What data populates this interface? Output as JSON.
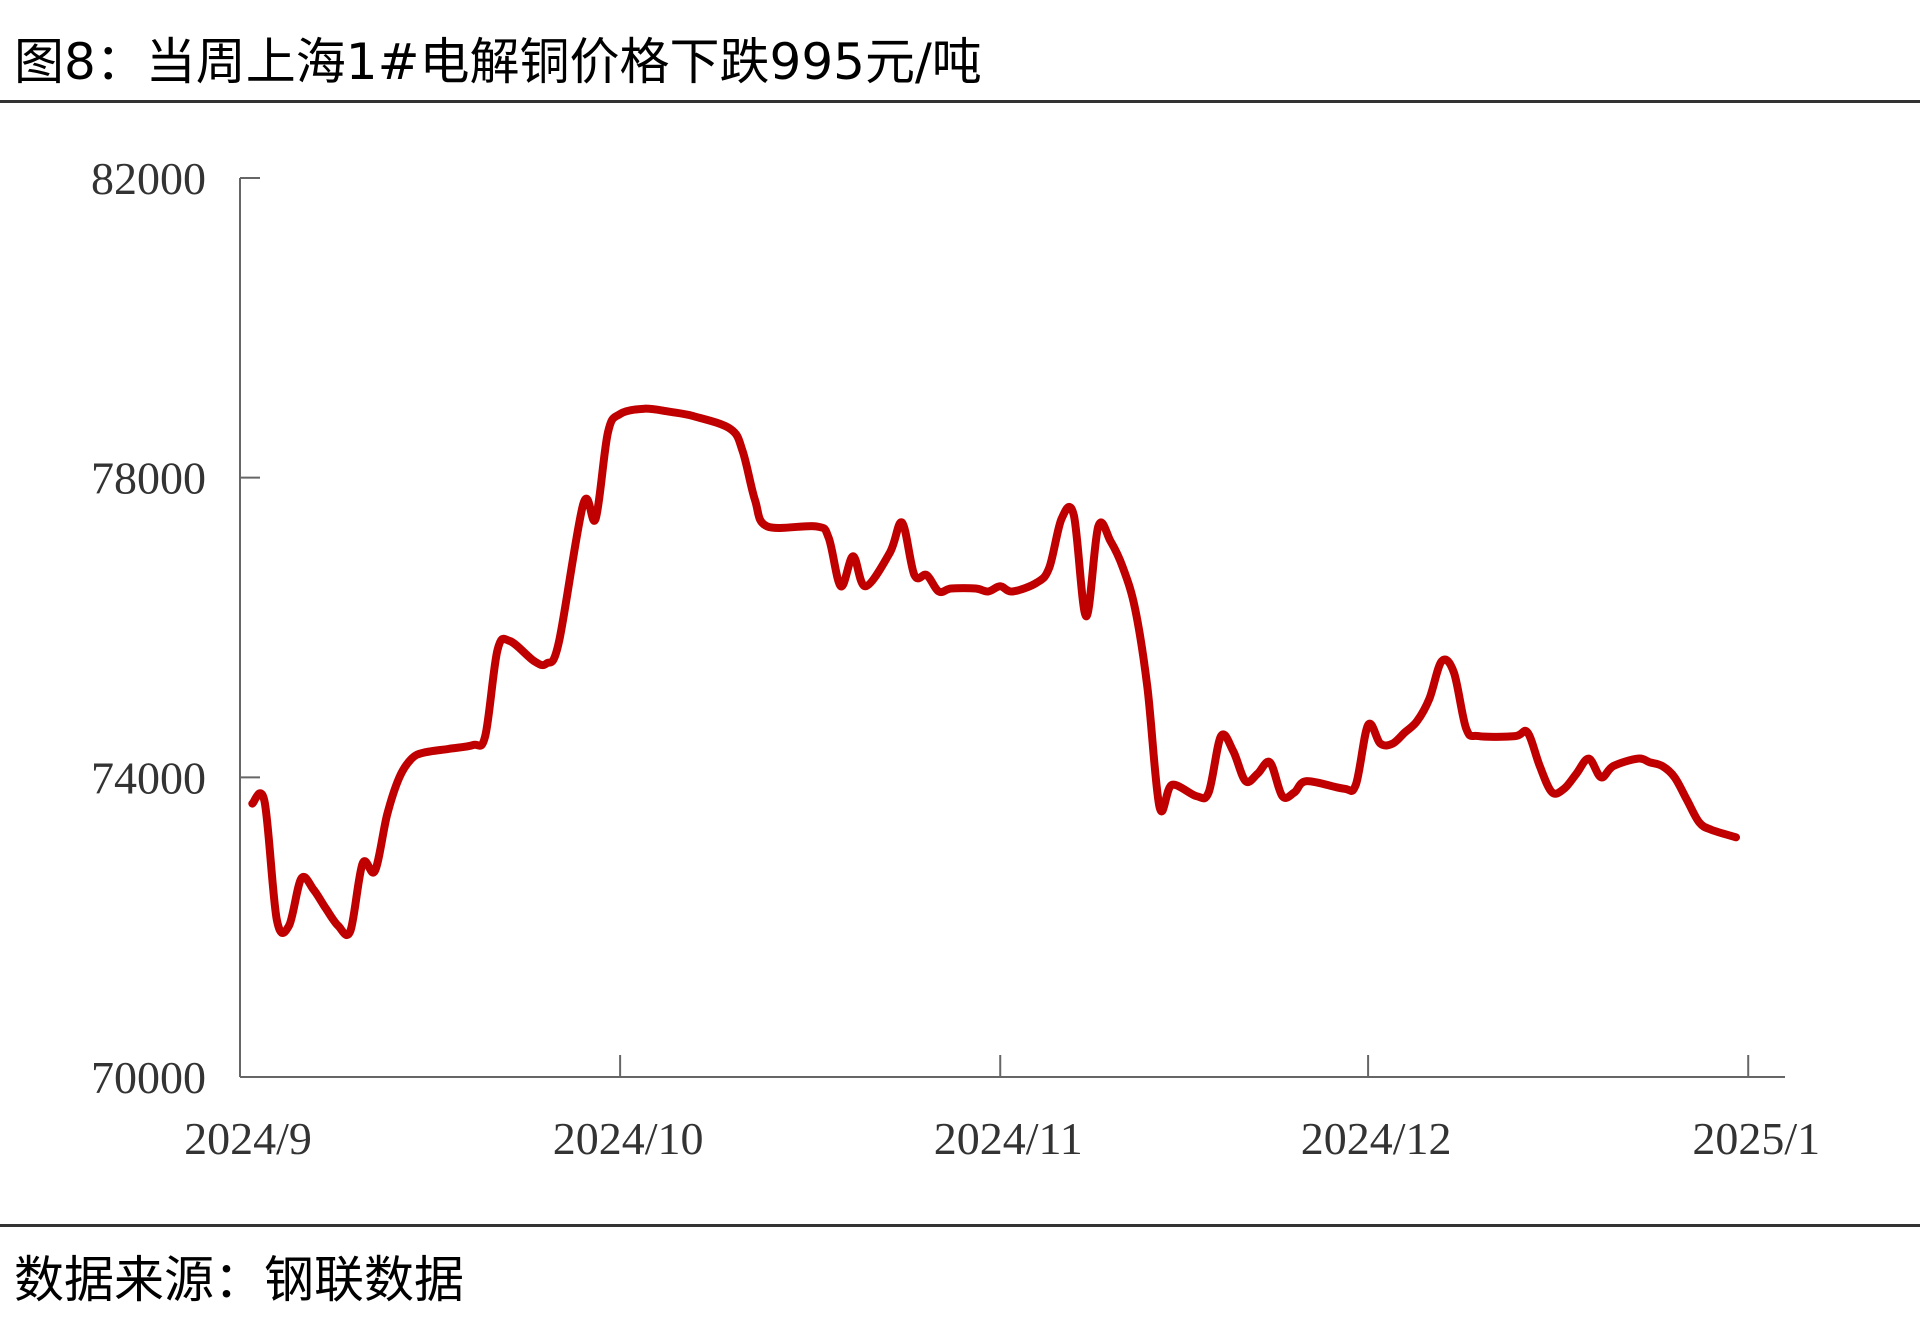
{
  "header": {
    "title": "图8：当周上海1#电解铜价格下跌995元/吨"
  },
  "footer": {
    "source": "数据来源：钢联数据"
  },
  "chart_data": {
    "type": "line",
    "title": "图8：当周上海1#电解铜价格下跌995元/吨",
    "xlabel": "",
    "ylabel": "",
    "ylim": [
      70000,
      82000
    ],
    "yticks": [
      70000,
      74000,
      78000,
      82000
    ],
    "xticks": [
      "2024/9",
      "2024/10",
      "2024/11",
      "2024/12",
      "2025/1"
    ],
    "xlim": [
      "2024-09-01",
      "2025-01-01"
    ],
    "grid": false,
    "legend": "none",
    "line_color": "#C00000",
    "series": [
      {
        "points": [
          [
            "2024-09-01",
            73650
          ],
          [
            "2024-09-02",
            73680
          ],
          [
            "2024-09-03",
            72100
          ],
          [
            "2024-09-04",
            72020
          ],
          [
            "2024-09-05",
            72650
          ],
          [
            "2024-09-06",
            72500
          ],
          [
            "2024-09-07",
            72250
          ],
          [
            "2024-09-08",
            72020
          ],
          [
            "2024-09-09",
            71950
          ],
          [
            "2024-09-10",
            72850
          ],
          [
            "2024-09-11",
            72750
          ],
          [
            "2024-09-12",
            73500
          ],
          [
            "2024-09-13",
            74000
          ],
          [
            "2024-09-14",
            74250
          ],
          [
            "2024-09-15",
            74330
          ],
          [
            "2024-09-17",
            74380
          ],
          [
            "2024-09-19",
            74430
          ],
          [
            "2024-09-20",
            74550
          ],
          [
            "2024-09-21",
            75700
          ],
          [
            "2024-09-22",
            75820
          ],
          [
            "2024-09-24",
            75550
          ],
          [
            "2024-09-25",
            75520
          ],
          [
            "2024-09-26",
            75800
          ],
          [
            "2024-09-28",
            77650
          ],
          [
            "2024-09-29",
            77450
          ],
          [
            "2024-09-30",
            78600
          ],
          [
            "2024-10-01",
            78850
          ],
          [
            "2024-10-03",
            78920
          ],
          [
            "2024-10-05",
            78880
          ],
          [
            "2024-10-07",
            78820
          ],
          [
            "2024-10-10",
            78650
          ],
          [
            "2024-10-11",
            78350
          ],
          [
            "2024-10-12",
            77700
          ],
          [
            "2024-10-13",
            77350
          ],
          [
            "2024-10-17",
            77350
          ],
          [
            "2024-10-18",
            77200
          ],
          [
            "2024-10-19",
            76550
          ],
          [
            "2024-10-20",
            76950
          ],
          [
            "2024-10-21",
            76550
          ],
          [
            "2024-10-23",
            77000
          ],
          [
            "2024-10-24",
            77400
          ],
          [
            "2024-10-25",
            76700
          ],
          [
            "2024-10-26",
            76700
          ],
          [
            "2024-10-27",
            76480
          ],
          [
            "2024-10-28",
            76520
          ],
          [
            "2024-10-30",
            76520
          ],
          [
            "2024-10-31",
            76480
          ],
          [
            "2024-11-01",
            76550
          ],
          [
            "2024-11-02",
            76480
          ],
          [
            "2024-11-04",
            76600
          ],
          [
            "2024-11-05",
            76800
          ],
          [
            "2024-11-06",
            77450
          ],
          [
            "2024-11-07",
            77500
          ],
          [
            "2024-11-08",
            76150
          ],
          [
            "2024-11-09",
            77350
          ],
          [
            "2024-11-10",
            77150
          ],
          [
            "2024-11-11",
            76800
          ],
          [
            "2024-11-12",
            76250
          ],
          [
            "2024-11-13",
            75200
          ],
          [
            "2024-11-14",
            73600
          ],
          [
            "2024-11-15",
            73900
          ],
          [
            "2024-11-17",
            73750
          ],
          [
            "2024-11-18",
            73800
          ],
          [
            "2024-11-19",
            74550
          ],
          [
            "2024-11-20",
            74350
          ],
          [
            "2024-11-21",
            73950
          ],
          [
            "2024-11-22",
            74050
          ],
          [
            "2024-11-23",
            74200
          ],
          [
            "2024-11-24",
            73750
          ],
          [
            "2024-11-25",
            73800
          ],
          [
            "2024-11-26",
            73950
          ],
          [
            "2024-11-29",
            73850
          ],
          [
            "2024-11-30",
            73900
          ],
          [
            "2024-12-01",
            74700
          ],
          [
            "2024-12-02",
            74450
          ],
          [
            "2024-12-03",
            74450
          ],
          [
            "2024-12-04",
            74600
          ],
          [
            "2024-12-05",
            74750
          ],
          [
            "2024-12-06",
            75050
          ],
          [
            "2024-12-07",
            75550
          ],
          [
            "2024-12-08",
            75400
          ],
          [
            "2024-12-09",
            74650
          ],
          [
            "2024-12-10",
            74550
          ],
          [
            "2024-12-13",
            74550
          ],
          [
            "2024-12-14",
            74600
          ],
          [
            "2024-12-15",
            74150
          ],
          [
            "2024-12-16",
            73800
          ],
          [
            "2024-12-17",
            73850
          ],
          [
            "2024-12-18",
            74050
          ],
          [
            "2024-12-19",
            74250
          ],
          [
            "2024-12-20",
            74000
          ],
          [
            "2024-12-21",
            74150
          ],
          [
            "2024-12-23",
            74250
          ],
          [
            "2024-12-24",
            74200
          ],
          [
            "2024-12-25",
            74150
          ],
          [
            "2024-12-26",
            74000
          ],
          [
            "2024-12-27",
            73700
          ],
          [
            "2024-12-28",
            73400
          ],
          [
            "2024-12-29",
            73300
          ],
          [
            "2024-12-31",
            73200
          ]
        ]
      }
    ]
  }
}
